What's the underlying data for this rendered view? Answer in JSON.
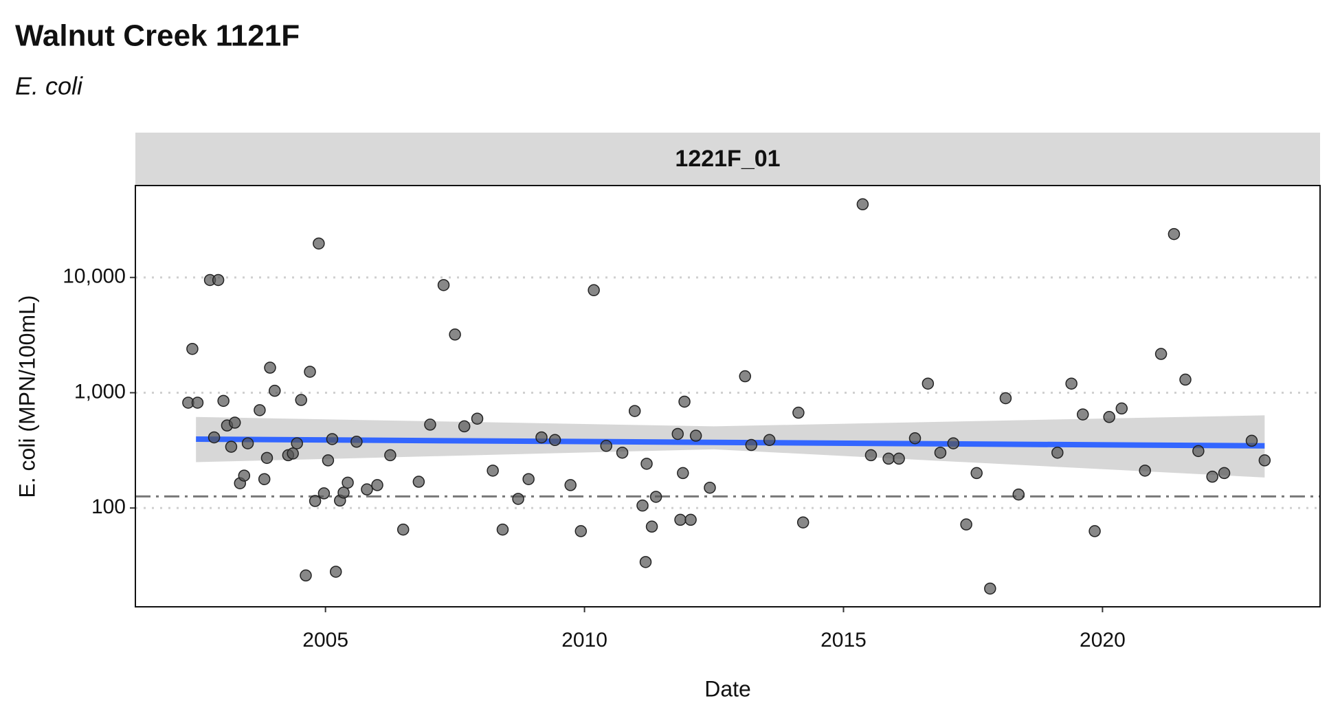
{
  "chart_data": {
    "type": "scatter",
    "title": "Walnut Creek 1121F",
    "subtitle": "E. coli",
    "facet": "1221F_01",
    "x_label": "Date",
    "y_label": "E. coli (MPN/100mL)",
    "x": [
      2002.35,
      2002.43,
      2002.53,
      2002.77,
      2002.85,
      2002.93,
      2003.03,
      2003.1,
      2003.18,
      2003.25,
      2003.35,
      2003.43,
      2003.5,
      2003.73,
      2003.82,
      2003.87,
      2003.93,
      2004.02,
      2004.28,
      2004.37,
      2004.45,
      2004.53,
      2004.62,
      2004.7,
      2004.8,
      2004.87,
      2004.97,
      2005.05,
      2005.13,
      2005.2,
      2005.28,
      2005.35,
      2005.43,
      2005.6,
      2005.8,
      2006.0,
      2006.25,
      2006.5,
      2006.8,
      2007.02,
      2007.68,
      2007.28,
      2007.5,
      2007.93,
      2008.23,
      2008.42,
      2008.72,
      2008.92,
      2009.17,
      2009.43,
      2009.73,
      2009.93,
      2010.18,
      2010.42,
      2010.73,
      2010.97,
      2011.12,
      2011.2,
      2011.3,
      2011.18,
      2011.38,
      2011.8,
      2011.85,
      2011.9,
      2011.93,
      2012.05,
      2012.15,
      2012.42,
      2013.1,
      2013.22,
      2013.57,
      2014.13,
      2014.22,
      2015.37,
      2015.53,
      2015.87,
      2016.07,
      2016.38,
      2016.63,
      2016.87,
      2017.12,
      2017.37,
      2017.57,
      2017.83,
      2018.13,
      2018.38,
      2019.13,
      2019.4,
      2019.62,
      2019.85,
      2020.13,
      2020.37,
      2020.82,
      2021.13,
      2021.38,
      2021.6,
      2021.85,
      2022.12,
      2022.35,
      2022.88,
      2023.13
    ],
    "values": [
      820,
      2400,
      820,
      9500,
      410,
      9500,
      850,
      520,
      340,
      550,
      164,
      191,
      364,
      706,
      178,
      272,
      1650,
      1040,
      287,
      297,
      364,
      865,
      26,
      1520,
      115,
      19700,
      134,
      259,
      396,
      28,
      116,
      136,
      166,
      376,
      145,
      158,
      287,
      65,
      169,
      529,
      511,
      8590,
      3200,
      596,
      211,
      65,
      120,
      178,
      410,
      389,
      158,
      63,
      7750,
      346,
      302,
      694,
      105,
      242,
      69,
      34,
      125,
      439,
      79,
      201,
      837,
      79,
      424,
      150,
      1390,
      352,
      389,
      671,
      75,
      43100,
      287,
      268,
      268,
      403,
      1200,
      302,
      364,
      72,
      201,
      20,
      896,
      131,
      302,
      1200,
      648,
      63,
      616,
      730,
      211,
      2170,
      23800,
      1300,
      312,
      187,
      201,
      383,
      259
    ],
    "color": "#555555",
    "xlim": [
      2001.33,
      2024.2
    ],
    "xticks": [
      2005,
      2010,
      2015,
      2020
    ],
    "ylim": [
      13.9,
      62700
    ],
    "yticks": [
      100,
      {
        "value": 1000,
        "label": "1,000"
      },
      {
        "value": 10000,
        "label": "10,000"
      }
    ],
    "log_y": true,
    "grid": true,
    "trend": {
      "x": [
        2002.5,
        2023.13
      ],
      "y": [
        396,
        346
      ],
      "color": "#3366ff"
    },
    "band": {
      "x": [
        2002.5,
        2012.5,
        2023.13
      ],
      "upper": [
        616,
        511,
        637
      ],
      "lower": [
        250,
        323,
        184
      ],
      "color": "#d3d3d3"
    },
    "reference_line": {
      "value": 126
    }
  }
}
